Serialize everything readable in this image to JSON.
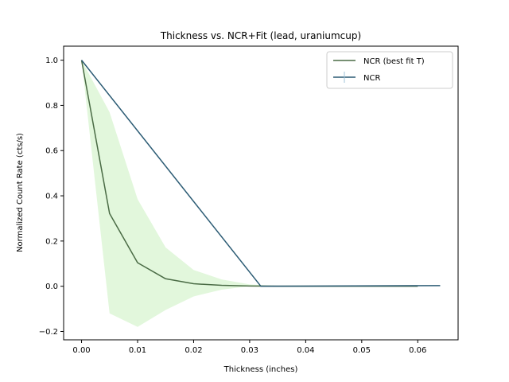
{
  "chart_data": {
    "type": "line",
    "title": "Thickness vs. NCR+Fit (lead, uraniumcup)",
    "xlabel": "Thickness (inches)",
    "ylabel": "Normalized Count Rate (cts/s)",
    "xlim": [
      -0.0032,
      0.0672
    ],
    "ylim": [
      -0.237,
      1.062
    ],
    "xticks": [
      0.0,
      0.01,
      0.02,
      0.03,
      0.04,
      0.05,
      0.06
    ],
    "xtick_labels": [
      "0.00",
      "0.01",
      "0.02",
      "0.03",
      "0.04",
      "0.05",
      "0.06"
    ],
    "yticks": [
      -0.2,
      0.0,
      0.2,
      0.4,
      0.6,
      0.8,
      1.0
    ],
    "ytick_labels": [
      "−0.2",
      "0.0",
      "0.2",
      "0.4",
      "0.6",
      "0.8",
      "1.0"
    ],
    "grid": false,
    "legend_position": "top-right",
    "series": [
      {
        "name": "NCR (best fit T)",
        "kind": "line",
        "color": "#4a6b45",
        "x": [
          0.0,
          0.005,
          0.01,
          0.015,
          0.02,
          0.025,
          0.03,
          0.035,
          0.04,
          0.045,
          0.05,
          0.055,
          0.06
        ],
        "y": [
          1.0,
          0.322,
          0.104,
          0.033,
          0.011,
          0.004,
          0.001,
          0.0,
          0.0,
          0.0,
          0.0,
          0.0,
          0.0
        ]
      },
      {
        "name": "NCR",
        "kind": "errorbar",
        "color": "#2a5a73",
        "x": [
          0.0,
          0.032,
          0.064
        ],
        "y": [
          1.0,
          0.0,
          0.003
        ],
        "yerr": [
          0.0,
          0.0,
          0.0
        ]
      }
    ],
    "band": {
      "color": "#e2f7dc",
      "x": [
        0.0,
        0.005,
        0.01,
        0.015,
        0.02,
        0.025,
        0.03,
        0.035,
        0.04,
        0.045,
        0.05,
        0.055,
        0.06
      ],
      "lower": [
        1.0,
        -0.12,
        -0.18,
        -0.105,
        -0.045,
        -0.015,
        0.0,
        0.0,
        0.0,
        0.0,
        0.0,
        0.0,
        0.0
      ],
      "upper": [
        1.0,
        0.77,
        0.385,
        0.172,
        0.072,
        0.03,
        0.008,
        0.002,
        0.0,
        0.0,
        0.0,
        0.0,
        0.0
      ]
    }
  }
}
